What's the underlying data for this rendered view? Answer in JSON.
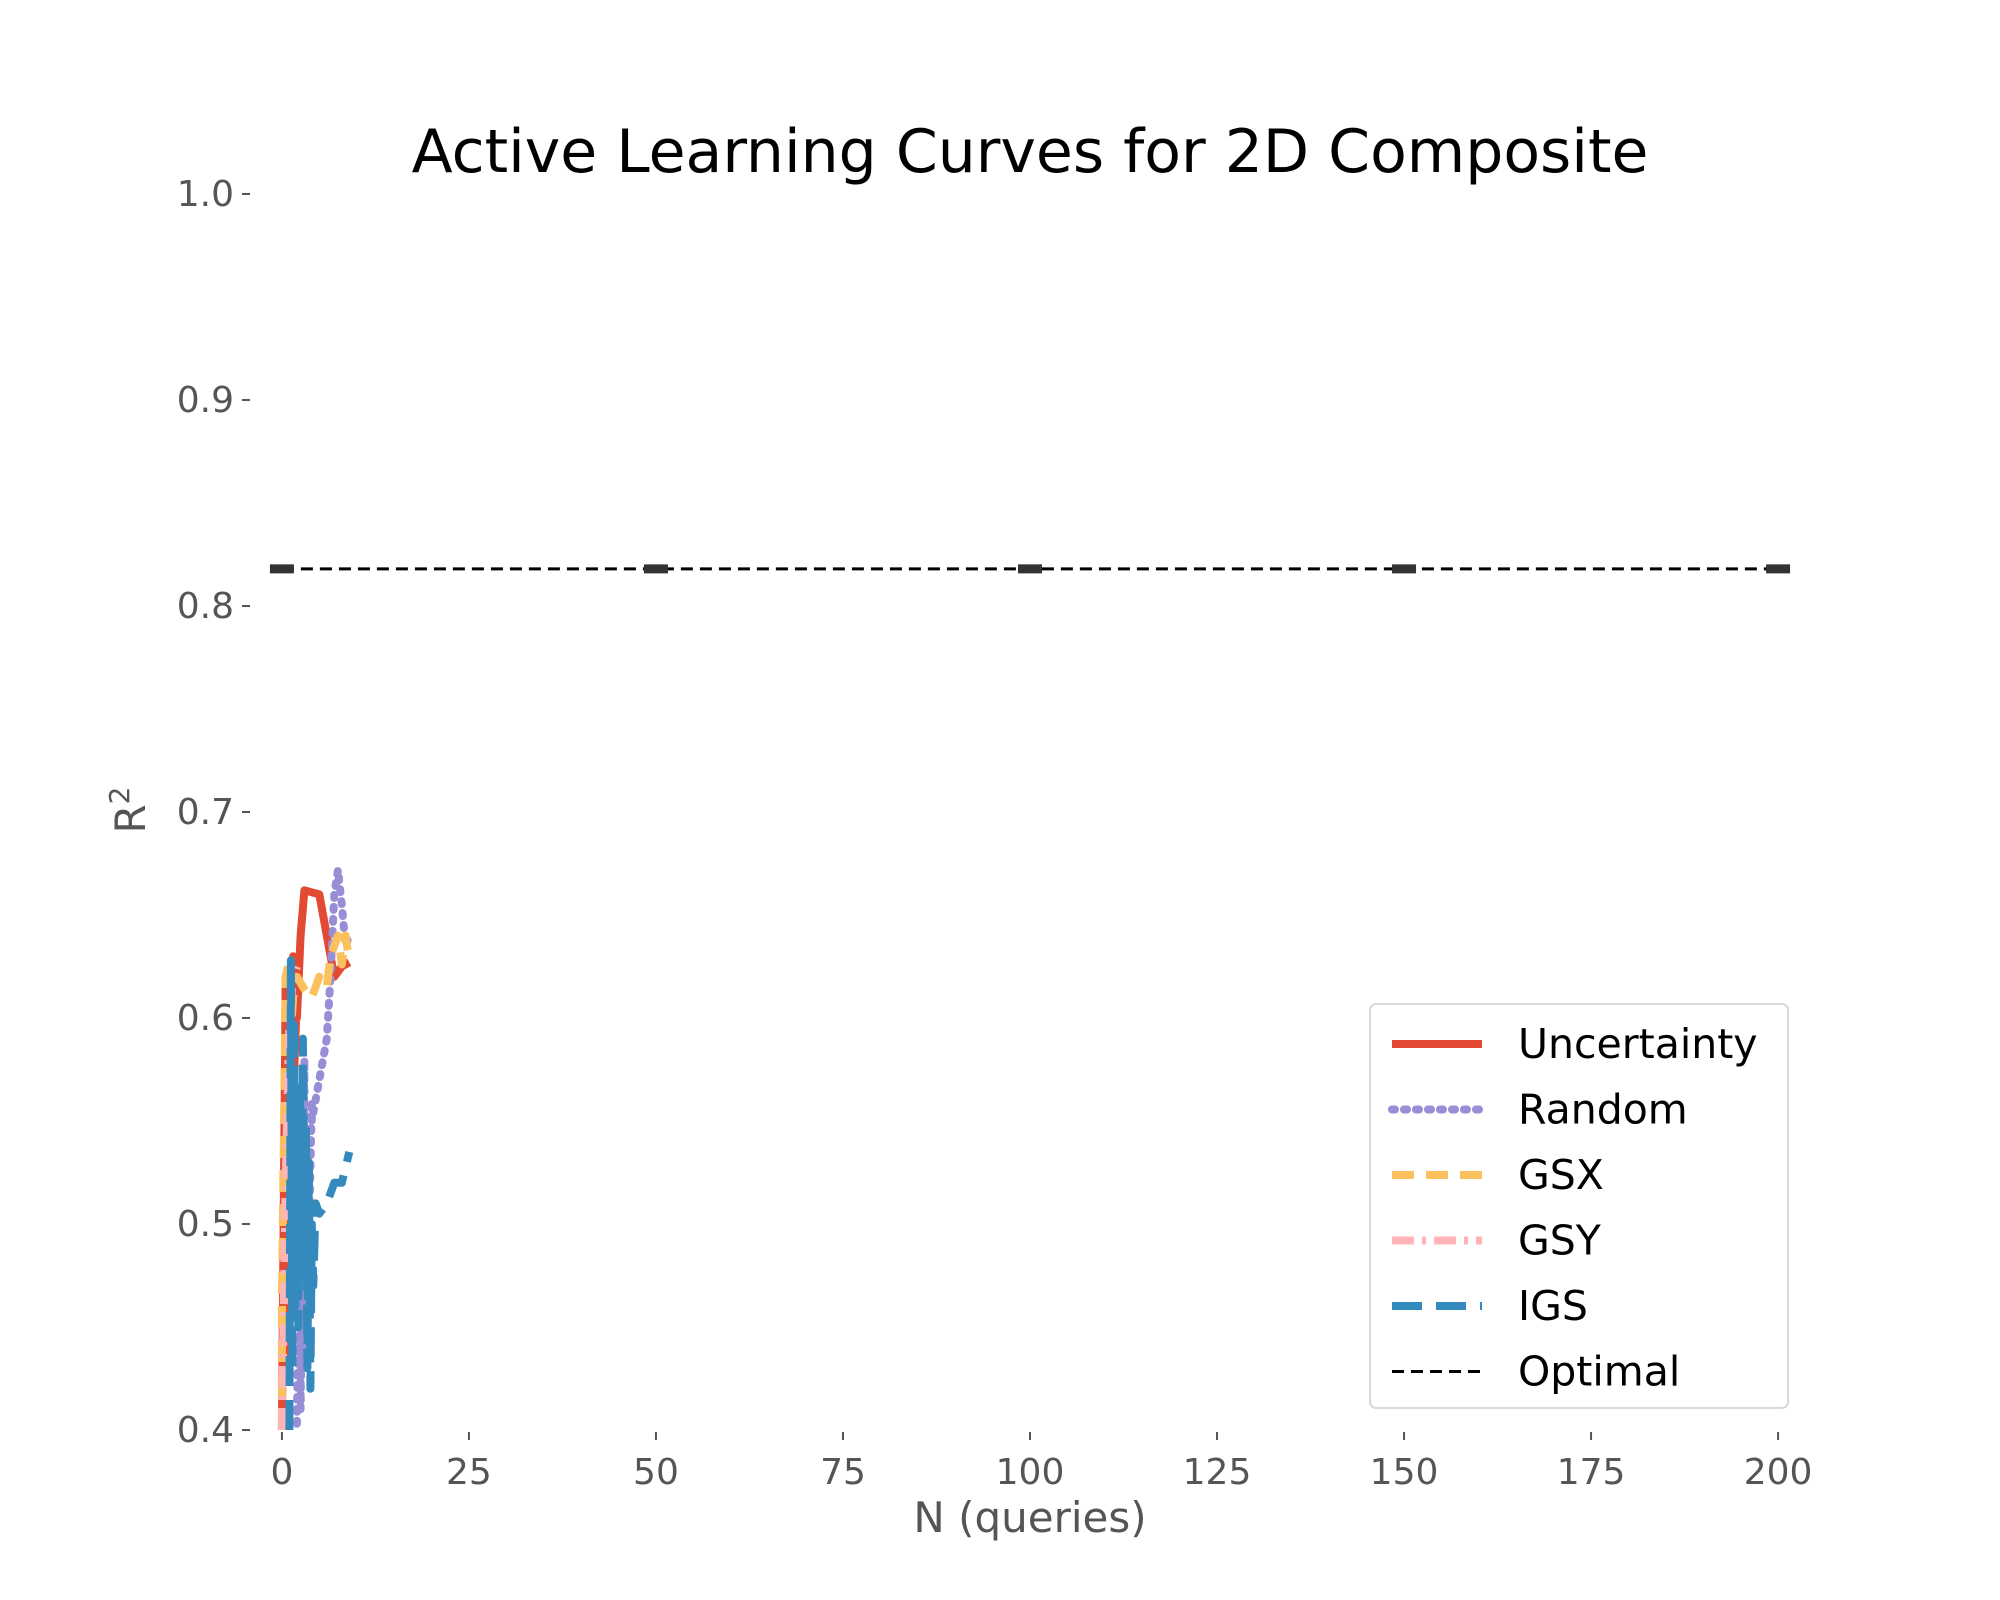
{
  "chart_data": {
    "type": "line",
    "title": "Active Learning Curves for 2D Composite",
    "xlabel": "N (queries)",
    "ylabel": "R",
    "ylabel_sup": "2",
    "xlim": [
      -4,
      204
    ],
    "ylim": [
      0.4,
      1.0
    ],
    "xticks": [
      0,
      25,
      50,
      75,
      100,
      125,
      150,
      175,
      200
    ],
    "yticks": [
      0.4,
      0.5,
      0.6,
      0.7,
      0.8,
      0.9,
      1.0
    ],
    "ytick_labels": [
      "0.4",
      "0.5",
      "0.6",
      "0.7",
      "0.8",
      "0.9",
      "1.0"
    ],
    "grid": false,
    "legend_position": "lower-right",
    "series": [
      {
        "name": "Uncertainty",
        "color": "#E24A33",
        "style": "solid",
        "x": [
          0,
          0.5,
          0.5,
          1,
          1,
          1.5,
          1.5,
          2,
          2,
          2.5,
          3,
          4,
          5,
          6,
          7,
          8,
          9
        ],
        "y": [
          0.4,
          0.62,
          0.43,
          0.61,
          0.47,
          0.63,
          0.56,
          0.61,
          0.6,
          0.64,
          0.662,
          0.661,
          0.66,
          0.64,
          0.62,
          0.625,
          0.627
        ]
      },
      {
        "name": "Random",
        "color": "#988ED5",
        "style": "dotted",
        "x": [
          2,
          2.5,
          2.5,
          3,
          3,
          3.5,
          3.5,
          4,
          4,
          5,
          6,
          6.5,
          7,
          7.5,
          8,
          8.5,
          9
        ],
        "y": [
          0.403,
          0.55,
          0.41,
          0.58,
          0.43,
          0.54,
          0.47,
          0.56,
          0.55,
          0.57,
          0.59,
          0.62,
          0.66,
          0.672,
          0.655,
          0.635,
          0.64
        ]
      },
      {
        "name": "GSX",
        "color": "#FBC15E",
        "style": "dashed",
        "x": [
          0,
          0,
          0.5,
          1,
          1,
          1.5,
          2,
          3,
          4,
          5,
          6,
          6.5,
          7,
          7.5,
          8,
          8.5,
          9
        ],
        "y": [
          0.4,
          0.46,
          0.62,
          0.628,
          0.58,
          0.61,
          0.62,
          0.614,
          0.61,
          0.62,
          0.615,
          0.63,
          0.635,
          0.64,
          0.626,
          0.64,
          0.628
        ]
      },
      {
        "name": "GSY",
        "color": "#FFB5B8",
        "style": "dashdot",
        "x": [
          0,
          0.5,
          1,
          1.5,
          2
        ],
        "y": [
          0.4,
          0.52,
          0.6,
          0.62,
          0.625
        ]
      },
      {
        "name": "IGS",
        "color": "#348ABD",
        "style": "longdash",
        "x": [
          1,
          1.2,
          1.4,
          1.6,
          1.8,
          2,
          2.2,
          2.4,
          2.6,
          2.8,
          3,
          3.2,
          3.4,
          3.6,
          3.8,
          4,
          4.2,
          4.5,
          5,
          6,
          7,
          8,
          9
        ],
        "y": [
          0.4,
          0.628,
          0.43,
          0.6,
          0.46,
          0.56,
          0.45,
          0.57,
          0.48,
          0.59,
          0.5,
          0.55,
          0.43,
          0.53,
          0.42,
          0.5,
          0.47,
          0.51,
          0.505,
          0.51,
          0.52,
          0.52,
          0.535
        ]
      },
      {
        "name": "Optimal",
        "color": "#000000",
        "style": "dashed-thin",
        "x": [
          0,
          200
        ],
        "y": [
          0.818,
          0.818
        ],
        "error_marker_x": [
          0,
          50,
          100,
          150,
          200
        ]
      }
    ]
  }
}
